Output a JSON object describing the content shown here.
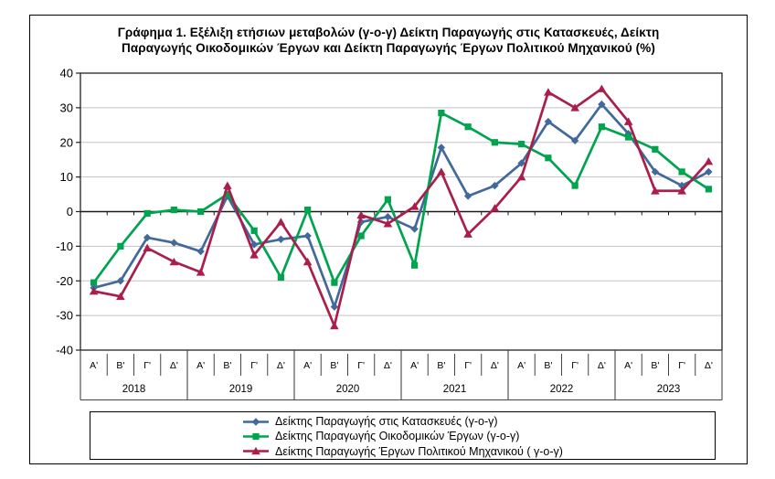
{
  "figure": {
    "title_line1": "Γράφημα  1. Εξέλιξη  ετήσιων  μεταβολών  (γ-ο-γ)  Δείκτη  Παραγωγής  στις  Κατασκευές,  Δείκτη",
    "title_line2": "Παραγωγής Οικοδομικών Έργων και Δείκτη Παραγωγής Έργων Πολιτικού Μηχανικού (%)"
  },
  "chart_data": {
    "type": "line",
    "title": "Γράφημα 1. Εξέλιξη ετήσιων μεταβολών (γ-ο-γ) Δείκτη Παραγωγής στις Κατασκευές, Δείκτη Παραγωγής Οικοδομικών Έργων και Δείκτη Παραγωγής Έργων Πολιτικού Μηχανικού (%)",
    "years": [
      "2018",
      "2019",
      "2020",
      "2021",
      "2022",
      "2023"
    ],
    "quarters_per_year": [
      "Α'",
      "Β'",
      "Γ'",
      "Δ'"
    ],
    "ylim": [
      -40,
      40
    ],
    "yticks": [
      40,
      30,
      20,
      10,
      0,
      -10,
      -20,
      -30,
      -40
    ],
    "grid": true,
    "legend_position": "bottom",
    "axis_color": "#1a1a1a",
    "grid_color": "#c3c3c3",
    "series": [
      {
        "name": "Δείκτης Παραγωγής στις Κατασκευές (γ-ο-γ)",
        "color": "#41699B",
        "marker": "diamond",
        "values": [
          -22,
          -20,
          -7.5,
          -9,
          -11.5,
          4.5,
          -9.5,
          -8,
          -7,
          -27.5,
          -3,
          -1.5,
          -5,
          18.5,
          4.5,
          7.5,
          14,
          26,
          20.5,
          31,
          22.5,
          11.5,
          7.5,
          11.5
        ]
      },
      {
        "name": "Δείκτης Παραγωγής Οικοδομικών Έργων (γ-ο-γ)",
        "color": "#00A34E",
        "marker": "square",
        "values": [
          -20.5,
          -10,
          -0.5,
          0.5,
          0,
          5,
          -5.5,
          -19,
          0.5,
          -20.5,
          -7,
          3.5,
          -15.5,
          28.5,
          24.5,
          20,
          19.5,
          15.5,
          7.5,
          24.5,
          21.5,
          18,
          11.5,
          6.5
        ]
      },
      {
        "name": "Δείκτης  Παραγωγής  Έργων  Πολιτικού  Μηχανικού  ( γ-ο-γ)",
        "color": "#A91E4B",
        "marker": "triangle",
        "values": [
          -23,
          -24.5,
          -10.5,
          -14.5,
          -17.5,
          7.5,
          -12.5,
          -3,
          -14.5,
          -33,
          -1,
          -3.5,
          1.5,
          11.5,
          -6.5,
          1,
          10,
          34.5,
          30,
          35.5,
          26,
          6,
          6,
          14.5
        ]
      }
    ]
  }
}
